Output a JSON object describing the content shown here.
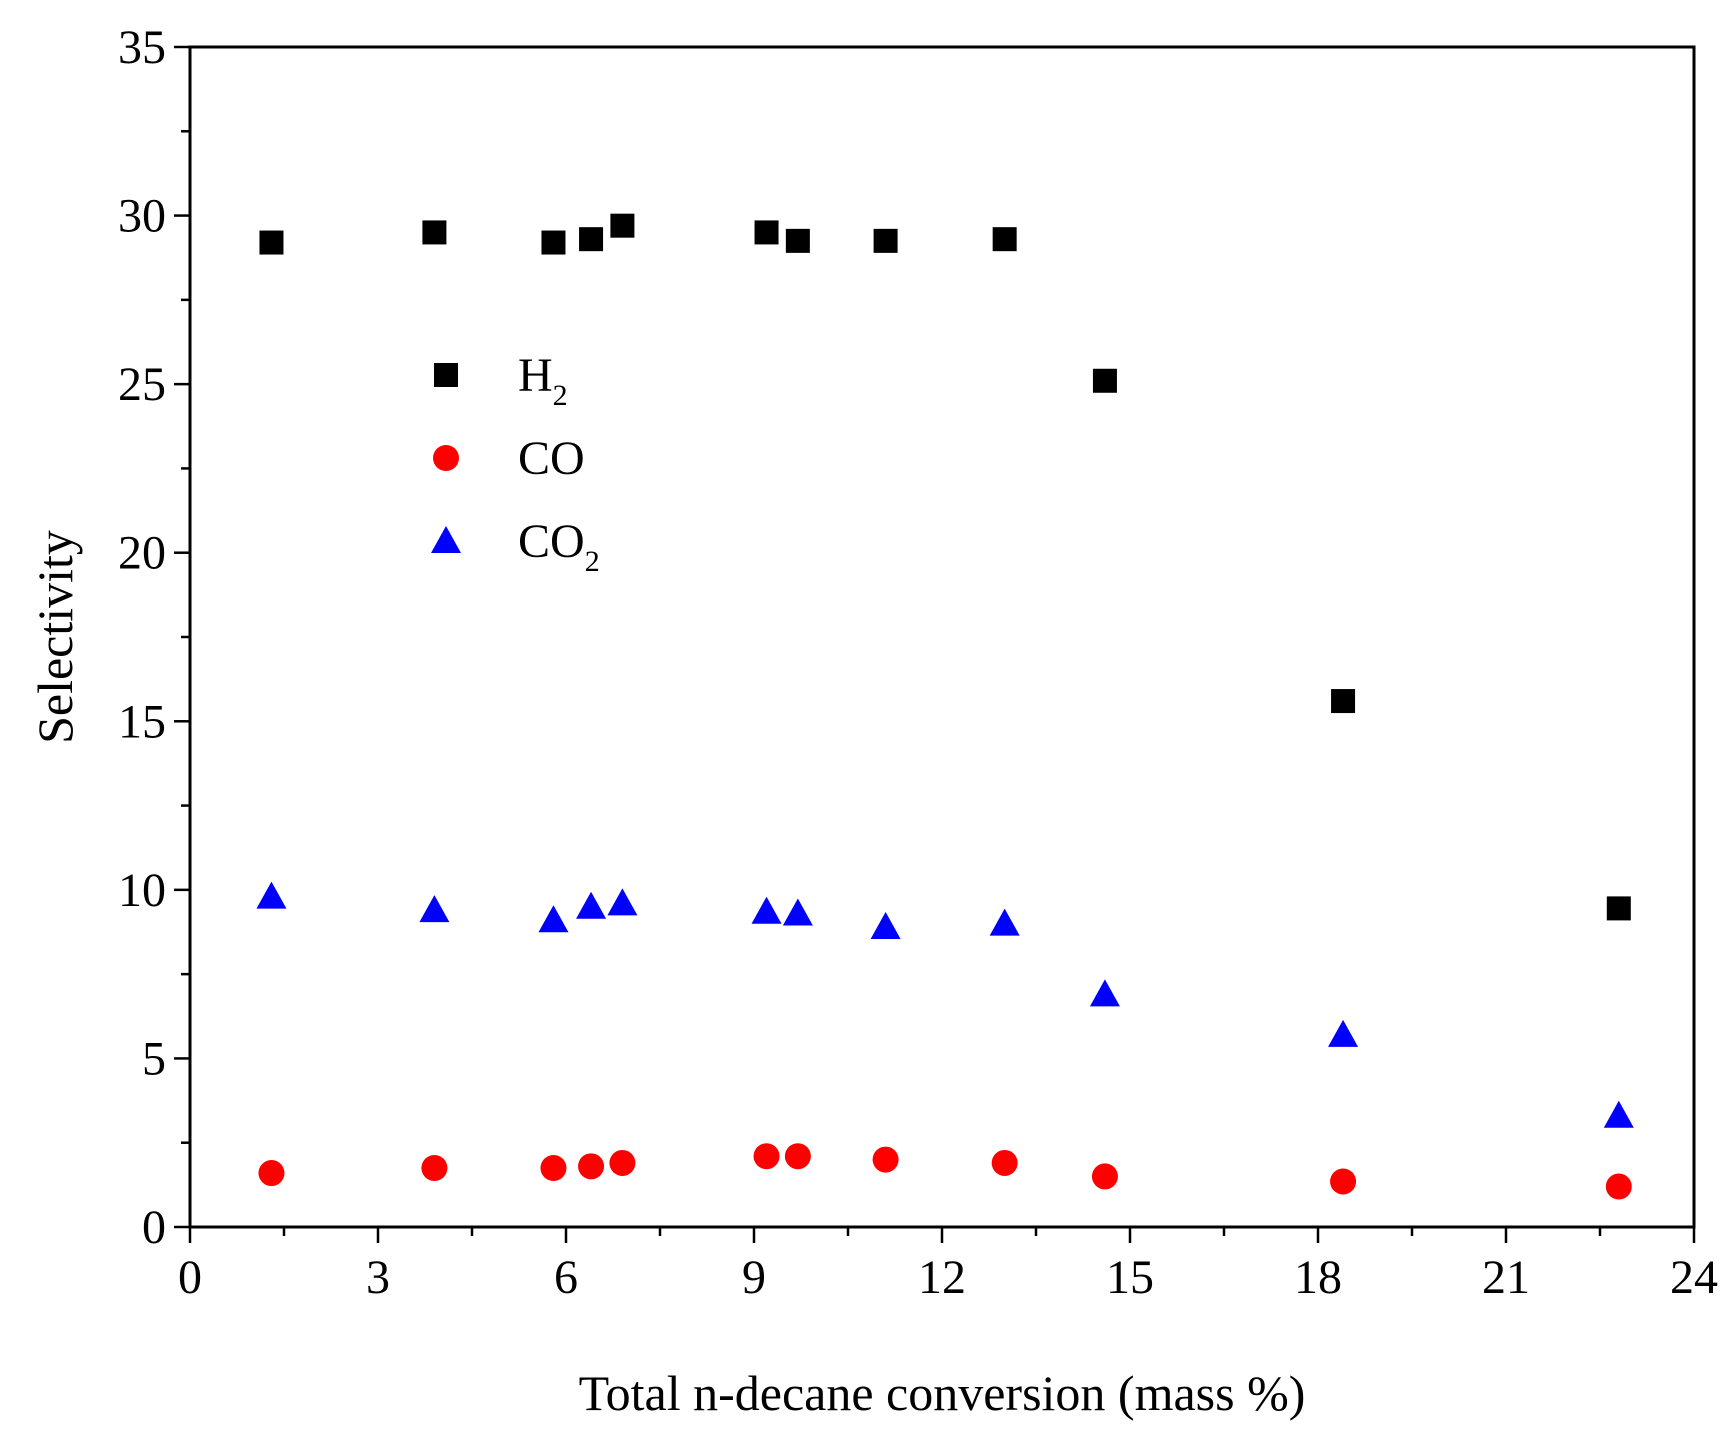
{
  "chart_data": {
    "type": "scatter",
    "title": "",
    "xlabel": "Total n-decane conversion (mass %)",
    "ylabel": "Selectivity",
    "xlim": [
      0,
      24
    ],
    "ylim": [
      0,
      35
    ],
    "x_ticks": [
      0,
      3,
      6,
      9,
      12,
      15,
      18,
      21,
      24
    ],
    "y_ticks": [
      0,
      5,
      10,
      15,
      20,
      25,
      30,
      35
    ],
    "x_tick_labels": [
      "0",
      "3",
      "6",
      "9",
      "12",
      "15",
      "18",
      "21",
      "24"
    ],
    "y_tick_labels": [
      "0",
      "5",
      "10",
      "15",
      "20",
      "25",
      "30",
      "35"
    ],
    "grid": false,
    "legend_position": "upper-left",
    "series": [
      {
        "name": "H2",
        "label_main": "H",
        "label_sub": "2",
        "marker": "square",
        "color": "#000000",
        "x": [
          1.3,
          3.9,
          5.8,
          6.4,
          6.9,
          9.2,
          9.7,
          11.1,
          13.0,
          14.6,
          18.4,
          22.8
        ],
        "y": [
          29.2,
          29.5,
          29.2,
          29.3,
          29.7,
          29.5,
          29.25,
          29.25,
          29.3,
          25.1,
          15.6,
          9.45
        ]
      },
      {
        "name": "CO",
        "label_main": "CO",
        "label_sub": "",
        "marker": "circle",
        "color": "#ff0000",
        "x": [
          1.3,
          3.9,
          5.8,
          6.4,
          6.9,
          9.2,
          9.7,
          11.1,
          13.0,
          14.6,
          18.4,
          22.8
        ],
        "y": [
          1.6,
          1.75,
          1.75,
          1.8,
          1.9,
          2.1,
          2.1,
          2.0,
          1.9,
          1.5,
          1.35,
          1.2
        ]
      },
      {
        "name": "CO2",
        "label_main": "CO",
        "label_sub": "2",
        "marker": "triangle",
        "color": "#0000ff",
        "x": [
          1.3,
          3.9,
          5.8,
          6.4,
          6.9,
          9.2,
          9.7,
          11.1,
          13.0,
          14.6,
          18.4,
          22.8
        ],
        "y": [
          9.8,
          9.4,
          9.1,
          9.5,
          9.6,
          9.35,
          9.3,
          8.9,
          9.0,
          6.9,
          5.7,
          3.3
        ]
      }
    ]
  }
}
